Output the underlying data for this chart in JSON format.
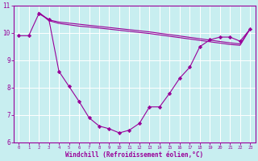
{
  "background_color": "#c8eef0",
  "grid_color": "#b0d8dc",
  "line_color": "#990099",
  "marker_color": "#990099",
  "xlabel": "Windchill (Refroidissement éolien,°C)",
  "xlim": [
    -0.5,
    23.5
  ],
  "ylim": [
    6,
    11
  ],
  "yticks": [
    6,
    7,
    8,
    9,
    10,
    11
  ],
  "xticks": [
    0,
    1,
    2,
    3,
    4,
    5,
    6,
    7,
    8,
    9,
    10,
    11,
    12,
    13,
    14,
    15,
    16,
    17,
    18,
    19,
    20,
    21,
    22,
    23
  ],
  "series1_x": [
    0,
    1,
    2,
    3,
    4,
    5,
    6,
    7,
    8,
    9,
    10,
    11,
    12,
    13,
    14,
    15,
    16,
    17,
    18,
    19,
    20,
    21,
    22,
    23
  ],
  "series1_y": [
    9.9,
    9.9,
    10.7,
    10.5,
    8.6,
    8.05,
    7.5,
    6.9,
    6.6,
    6.5,
    6.35,
    6.45,
    6.7,
    7.3,
    7.3,
    7.8,
    8.35,
    8.75,
    9.5,
    9.75,
    9.85,
    9.85,
    9.7,
    10.15
  ],
  "series2_x": [
    2,
    3,
    4,
    5,
    6,
    7,
    8,
    9,
    10,
    11,
    12,
    13,
    14,
    15,
    16,
    17,
    18,
    19,
    20,
    21,
    22,
    23
  ],
  "series2_y": [
    10.75,
    10.45,
    10.35,
    10.3,
    10.25,
    10.22,
    10.18,
    10.14,
    10.1,
    10.06,
    10.02,
    9.98,
    9.93,
    9.88,
    9.83,
    9.78,
    9.73,
    9.68,
    9.63,
    9.58,
    9.55,
    10.15
  ],
  "series3_x": [
    2,
    3,
    4,
    5,
    6,
    7,
    8,
    9,
    10,
    11,
    12,
    13,
    14,
    15,
    16,
    17,
    18,
    19,
    20,
    21,
    22,
    23
  ],
  "series3_y": [
    10.75,
    10.48,
    10.4,
    10.36,
    10.32,
    10.28,
    10.24,
    10.2,
    10.16,
    10.12,
    10.08,
    10.04,
    9.99,
    9.94,
    9.89,
    9.84,
    9.79,
    9.74,
    9.69,
    9.64,
    9.6,
    10.15
  ]
}
